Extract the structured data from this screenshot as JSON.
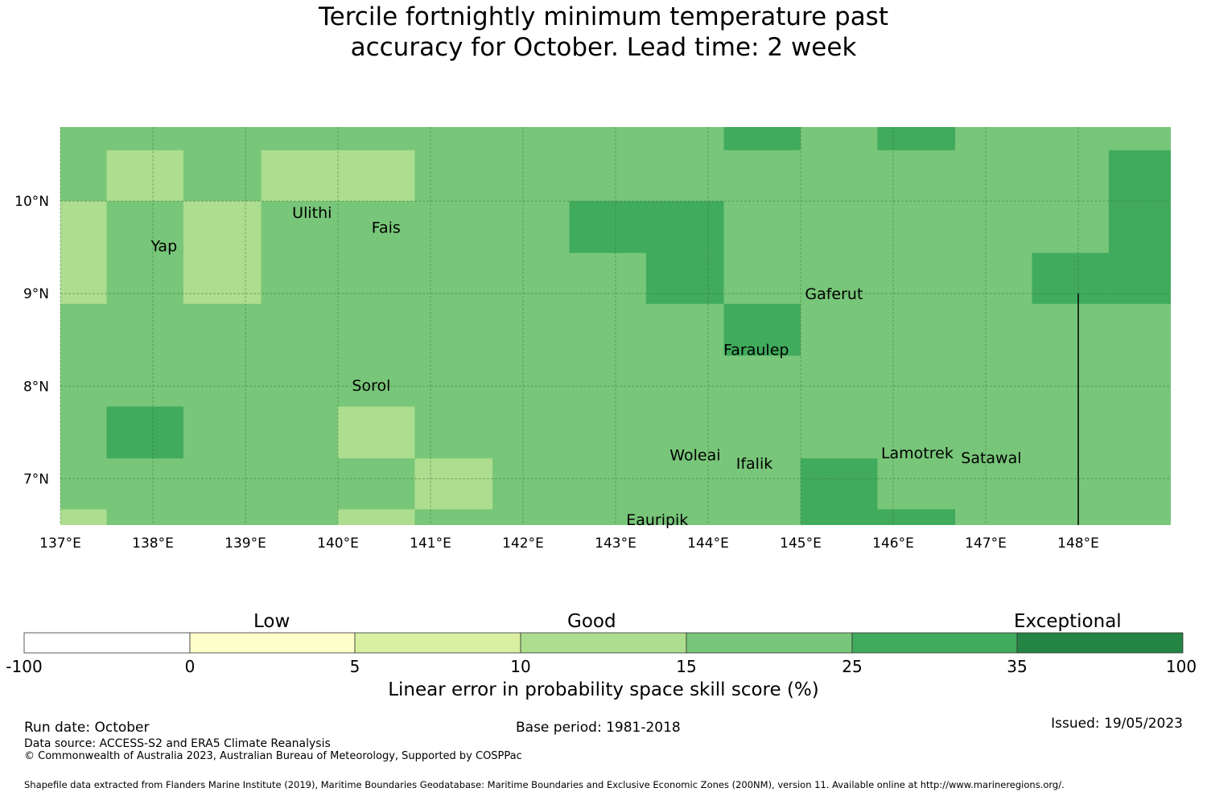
{
  "title": {
    "line1": "Tercile fortnightly minimum temperature past",
    "line2": "accuracy for October. Lead time: 2 week"
  },
  "map": {
    "lon_range": [
      137,
      149
    ],
    "lat_range": [
      6.5,
      10.8
    ],
    "lon_ticks": [
      {
        "value": 137,
        "label": "137°E"
      },
      {
        "value": 138,
        "label": "138°E"
      },
      {
        "value": 139,
        "label": "139°E"
      },
      {
        "value": 140,
        "label": "140°E"
      },
      {
        "value": 141,
        "label": "141°E"
      },
      {
        "value": 142,
        "label": "142°E"
      },
      {
        "value": 143,
        "label": "143°E"
      },
      {
        "value": 144,
        "label": "144°E"
      },
      {
        "value": 145,
        "label": "145°E"
      },
      {
        "value": 146,
        "label": "146°E"
      },
      {
        "value": 147,
        "label": "147°E"
      },
      {
        "value": 148,
        "label": "148°E"
      }
    ],
    "lat_ticks": [
      {
        "value": 10,
        "label": "10°N"
      },
      {
        "value": 9,
        "label": "9°N"
      },
      {
        "value": 8,
        "label": "8°N"
      },
      {
        "value": 7,
        "label": "7°N"
      }
    ],
    "background_class": 4,
    "cells": [
      {
        "lon0": 144.17,
        "lon1": 145.0,
        "lat0": 10.55,
        "lat1": 10.8,
        "class": 5
      },
      {
        "lon0": 145.83,
        "lon1": 146.67,
        "lat0": 10.55,
        "lat1": 10.8,
        "class": 5
      },
      {
        "lon0": 137.5,
        "lon1": 138.33,
        "lat0": 10.0,
        "lat1": 10.55,
        "class": 3
      },
      {
        "lon0": 139.17,
        "lon1": 140.83,
        "lat0": 10.0,
        "lat1": 10.55,
        "class": 3
      },
      {
        "lon0": 148.33,
        "lon1": 149.0,
        "lat0": 9.44,
        "lat1": 10.55,
        "class": 5
      },
      {
        "lon0": 137.0,
        "lon1": 137.5,
        "lat0": 8.89,
        "lat1": 10.0,
        "class": 3
      },
      {
        "lon0": 138.33,
        "lon1": 139.17,
        "lat0": 8.89,
        "lat1": 10.0,
        "class": 3
      },
      {
        "lon0": 142.5,
        "lon1": 144.17,
        "lat0": 9.44,
        "lat1": 10.0,
        "class": 5
      },
      {
        "lon0": 143.33,
        "lon1": 144.17,
        "lat0": 8.89,
        "lat1": 9.44,
        "class": 5
      },
      {
        "lon0": 147.5,
        "lon1": 148.33,
        "lat0": 8.89,
        "lat1": 9.44,
        "class": 5
      },
      {
        "lon0": 148.33,
        "lon1": 149.0,
        "lat0": 8.89,
        "lat1": 9.44,
        "class": 5
      },
      {
        "lon0": 144.17,
        "lon1": 145.0,
        "lat0": 8.33,
        "lat1": 8.89,
        "class": 5
      },
      {
        "lon0": 137.5,
        "lon1": 138.33,
        "lat0": 7.22,
        "lat1": 7.78,
        "class": 5
      },
      {
        "lon0": 140.0,
        "lon1": 140.83,
        "lat0": 7.22,
        "lat1": 7.78,
        "class": 3
      },
      {
        "lon0": 140.83,
        "lon1": 141.67,
        "lat0": 6.67,
        "lat1": 7.22,
        "class": 3
      },
      {
        "lon0": 145.0,
        "lon1": 145.83,
        "lat0": 6.5,
        "lat1": 7.22,
        "class": 5
      },
      {
        "lon0": 145.83,
        "lon1": 146.67,
        "lat0": 6.5,
        "lat1": 6.67,
        "class": 5
      },
      {
        "lon0": 137.0,
        "lon1": 137.5,
        "lat0": 6.5,
        "lat1": 6.67,
        "class": 3
      },
      {
        "lon0": 140.0,
        "lon1": 140.83,
        "lat0": 6.5,
        "lat1": 6.67,
        "class": 3
      }
    ],
    "boundary_line": {
      "lon": 148.0,
      "lat_from": 6.5,
      "lat_to": 9.0
    },
    "places": [
      {
        "name": "Ulithi",
        "lon": 139.72,
        "lat": 9.88
      },
      {
        "name": "Fais",
        "lon": 140.52,
        "lat": 9.72
      },
      {
        "name": "Yap",
        "lon": 138.12,
        "lat": 9.52
      },
      {
        "name": "Gaferut",
        "lon": 145.36,
        "lat": 9.0
      },
      {
        "name": "Faraulep",
        "lon": 144.52,
        "lat": 8.4
      },
      {
        "name": "Sorol",
        "lon": 140.36,
        "lat": 8.01
      },
      {
        "name": "Woleai",
        "lon": 143.86,
        "lat": 7.26
      },
      {
        "name": "Ifalik",
        "lon": 144.5,
        "lat": 7.17
      },
      {
        "name": "Lamotrek",
        "lon": 146.26,
        "lat": 7.28
      },
      {
        "name": "Satawal",
        "lon": 147.06,
        "lat": 7.23
      },
      {
        "name": "Eauripik",
        "lon": 143.45,
        "lat": 6.56
      }
    ]
  },
  "colorbar": {
    "boundaries": [
      "-100",
      "0",
      "5",
      "10",
      "15",
      "25",
      "35",
      "100"
    ],
    "colors": [
      "#ffffff",
      "#ffffcc",
      "#d9f0a3",
      "#addd8e",
      "#78c679",
      "#41ab5d",
      "#238443"
    ],
    "categories": [
      "Low",
      "Good",
      "Exceptional"
    ],
    "label": "Linear error in probability space skill score (%)"
  },
  "footer": {
    "run_date": "Run date: October",
    "base_period": "Base period: 1981-2018",
    "issued": "Issued: 19/05/2023",
    "data_source": "Data source: ACCESS-S2 and ERA5 Climate Reanalysis",
    "copyright": "© Commonwealth of Australia 2023, Australian Bureau of Meteorology, Supported by COSPPac",
    "shapefile": "Shapefile data extracted from Flanders Marine Institute (2019), Maritime Boundaries Geodatabase: Maritime Boundaries and Exclusive Economic Zones (200NM), version 11. Available online at http://www.marineregions.org/."
  }
}
